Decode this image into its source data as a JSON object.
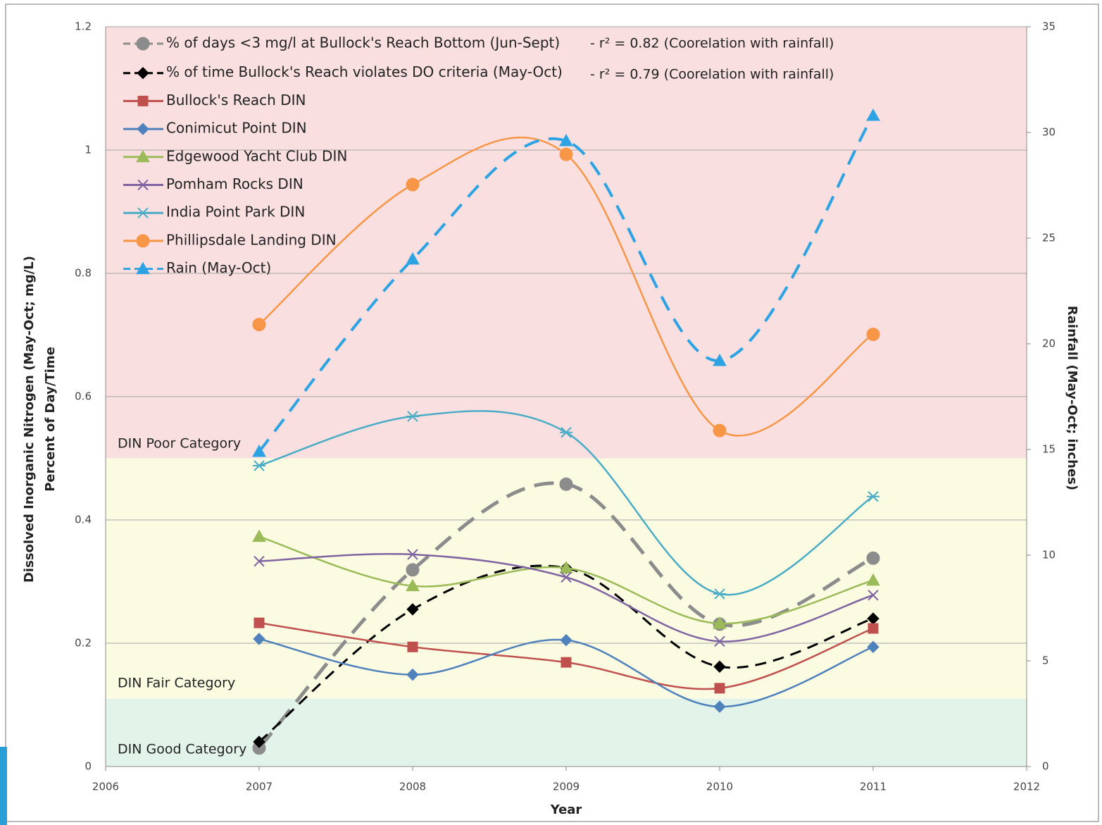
{
  "chart_data": {
    "type": "line",
    "x": [
      2007,
      2008,
      2009,
      2010,
      2011
    ],
    "xlim": [
      2006,
      2012
    ],
    "xticks": [
      2006,
      2007,
      2008,
      2009,
      2010,
      2011,
      2012
    ],
    "ylim": [
      0,
      1.2
    ],
    "yticks": [
      0,
      0.2,
      0.4,
      0.6,
      0.8,
      1,
      1.2
    ],
    "y2lim": [
      0,
      35
    ],
    "y2ticks": [
      0,
      5,
      10,
      15,
      20,
      25,
      30,
      35
    ],
    "grid": true,
    "x_label": "Year",
    "y_label": [
      "Dissolved Inorganic Nitrogen (May-Oct; mg/L)",
      "Percent of Day/Time"
    ],
    "y2_label": "Rainfall (May-Oct; inches)",
    "bands": [
      {
        "label": "DIN Poor Category",
        "from": 0.5,
        "to": 1.2,
        "color": "#f9dfe0"
      },
      {
        "label": "DIN Fair Category",
        "from": 0.11,
        "to": 0.5,
        "color": "#fbfbe2"
      },
      {
        "label": "DIN Good Category",
        "from": 0,
        "to": 0.11,
        "color": "#e2f3ea"
      }
    ],
    "annotations": [
      "-  r² = 0.82 (Coorelation with rainfall)",
      "-  r² = 0.79 (Coorelation with rainfall)"
    ],
    "series": [
      {
        "name": "% of days <3 mg/l at Bullock's Reach Bottom (Jun-Sept)",
        "color": "#8c8c8c",
        "marker": "circle",
        "dashed": true,
        "values": [
          0.03,
          0.319,
          0.458,
          0.231,
          0.338
        ]
      },
      {
        "name": "% of time Bullock's Reach violates DO criteria (May-Oct)",
        "color": "#000000",
        "marker": "diamond",
        "dashed": true,
        "values": [
          0.04,
          0.255,
          0.322,
          0.162,
          0.24
        ]
      },
      {
        "name": "Bullock's Reach DIN",
        "color": "#c0504d",
        "marker": "square",
        "values": [
          0.233,
          0.194,
          0.169,
          0.127,
          0.224
        ]
      },
      {
        "name": "Conimicut Point DIN",
        "color": "#4f81bd",
        "marker": "diamond",
        "values": [
          0.207,
          0.149,
          0.205,
          0.097,
          0.194
        ]
      },
      {
        "name": "Edgewood Yacht Club DIN",
        "color": "#9bbb59",
        "marker": "triangle",
        "values": [
          0.373,
          0.293,
          0.322,
          0.232,
          0.302
        ]
      },
      {
        "name": "Pomham Rocks DIN",
        "color": "#8064a2",
        "marker": "x",
        "values": [
          0.333,
          0.344,
          0.307,
          0.203,
          0.278
        ]
      },
      {
        "name": "India Point Park DIN",
        "color": "#4bacc6",
        "marker": "star",
        "values": [
          0.488,
          0.568,
          0.542,
          0.28,
          0.438
        ]
      },
      {
        "name": "Phillipsdale Landing DIN",
        "color": "#f79646",
        "marker": "circle",
        "values": [
          0.717,
          0.944,
          0.993,
          0.545,
          0.701
        ]
      },
      {
        "name": "Rain (May-Oct)",
        "color": "#2ea3e3",
        "marker": "triangle",
        "dashed": true,
        "axis": "y2",
        "values": [
          14.9,
          24.0,
          29.6,
          19.2,
          30.8
        ]
      }
    ]
  }
}
